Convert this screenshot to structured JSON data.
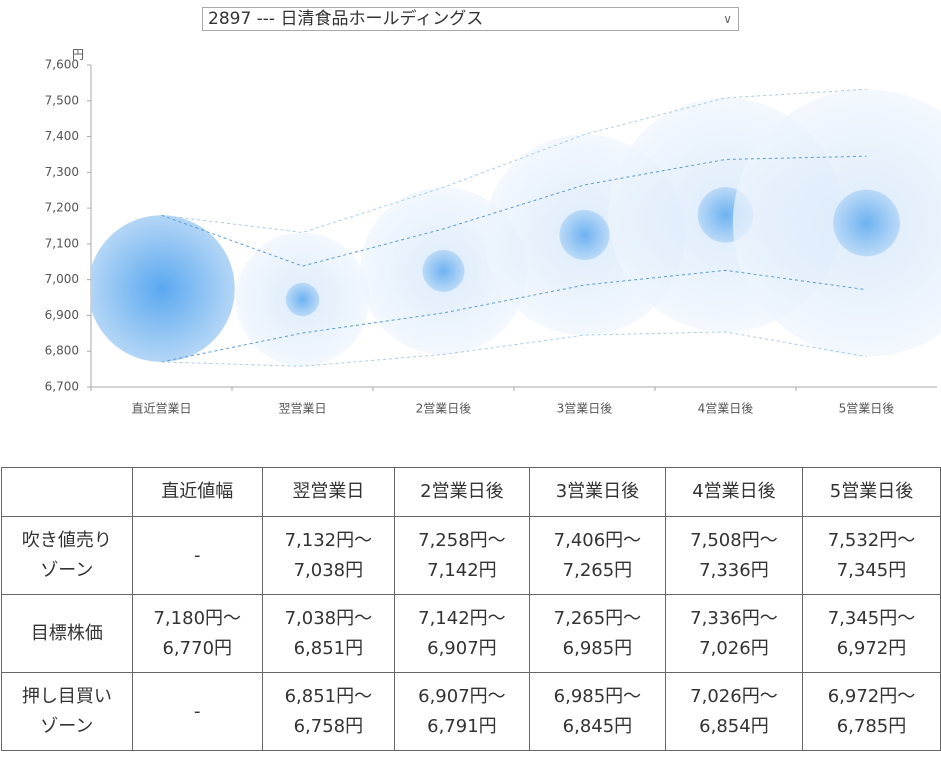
{
  "selector": {
    "value": "2897 --- 日清食品ホールディングス"
  },
  "chart_data": {
    "type": "range-bubble",
    "y_unit": "円",
    "categories": [
      "直近営業日",
      "翌営業日",
      "2営業日後",
      "3営業日後",
      "4営業日後",
      "5営業日後"
    ],
    "ylim": [
      6700,
      7600
    ],
    "yticks": [
      {
        "value": 6700,
        "label": "6,700"
      },
      {
        "value": 6800,
        "label": "6,800"
      },
      {
        "value": 6900,
        "label": "6,900"
      },
      {
        "value": 7000,
        "label": "7,000"
      },
      {
        "value": 7100,
        "label": "7,100"
      },
      {
        "value": 7200,
        "label": "7,200"
      },
      {
        "value": 7300,
        "label": "7,300"
      },
      {
        "value": 7400,
        "label": "7,400"
      },
      {
        "value": 7500,
        "label": "7,500"
      },
      {
        "value": 7600,
        "label": "7,600"
      }
    ],
    "series": [
      {
        "color": "#a9cdee",
        "values": [
          7180,
          7132,
          7258,
          7406,
          7508,
          7532
        ]
      },
      {
        "color": "#5b9bd5",
        "values": [
          7180,
          7038,
          7142,
          7265,
          7336,
          7345
        ]
      },
      {
        "color": "#5b9bd5",
        "values": [
          6770,
          6851,
          6907,
          6985,
          7026,
          6972
        ]
      },
      {
        "color": "#a9cdee",
        "values": [
          6770,
          6758,
          6791,
          6845,
          6854,
          6785
        ]
      }
    ]
  },
  "table": {
    "header": [
      "直近値幅",
      "翌営業日",
      "2営業日後",
      "3営業日後",
      "4営業日後",
      "5営業日後"
    ],
    "rows": [
      [
        [
          "吹き値売り",
          "ゾーン"
        ],
        "-",
        [
          "7,132円～",
          "7,038円"
        ],
        [
          "7,258円～",
          "7,142円"
        ],
        [
          "7,406円～",
          "7,265円"
        ],
        [
          "7,508円～",
          "7,336円"
        ],
        [
          "7,532円～",
          "7,345円"
        ]
      ],
      [
        "目標株価",
        [
          "7,180円～",
          "6,770円"
        ],
        [
          "7,038円～",
          "6,851円"
        ],
        [
          "7,142円～",
          "6,907円"
        ],
        [
          "7,265円～",
          "6,985円"
        ],
        [
          "7,336円～",
          "7,026円"
        ],
        [
          "7,345円～",
          "6,972円"
        ]
      ],
      [
        [
          "押し目買い",
          "ゾーン"
        ],
        "-",
        [
          "6,851円～",
          "6,758円"
        ],
        [
          "6,907円～",
          "6,791円"
        ],
        [
          "6,985円～",
          "6,845円"
        ],
        [
          "7,026円～",
          "6,854円"
        ],
        [
          "6,972円～",
          "6,785円"
        ]
      ]
    ]
  }
}
